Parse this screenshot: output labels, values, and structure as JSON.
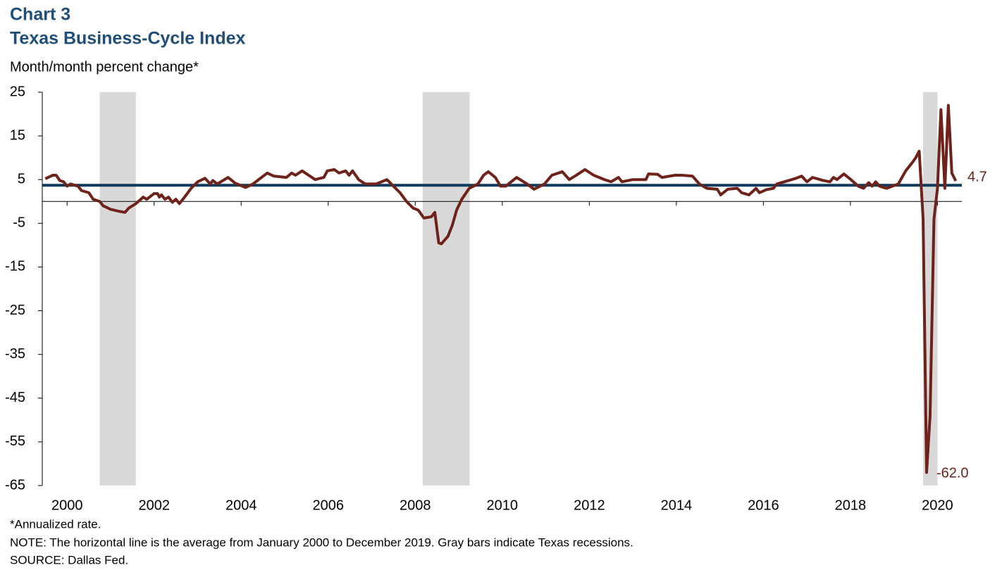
{
  "chart_data": {
    "type": "line",
    "title": "Chart 3",
    "subtitle": "Texas Business-Cycle Index",
    "y_label": "Month/month percent change*",
    "notes": [
      "*Annualized  rate.",
      "NOTE: The horizontal line is the average from January 2000 to December 2019. Gray bars indicate Texas recessions.",
      "SOURCE: Dallas Fed."
    ],
    "annotations": [
      "4.7",
      "-62.0"
    ],
    "average": 3.7,
    "average_color": "#0e3a5e",
    "recessions": [
      [
        2001.25,
        2002.08
      ],
      [
        2008.67,
        2009.75
      ],
      [
        2020.17,
        2020.5
      ]
    ],
    "recession_color": "#d9d9d9",
    "ylim": [
      -65,
      25
    ],
    "yticks": [
      25,
      15,
      5,
      -5,
      -15,
      -25,
      -35,
      -45,
      -55,
      -65
    ],
    "xlim": [
      1999.93,
      2021.06
    ],
    "xticks": [
      {
        "value": 2000.5,
        "label": "2000"
      },
      {
        "value": 2002.5,
        "label": "2002"
      },
      {
        "value": 2004.5,
        "label": "2004"
      },
      {
        "value": 2006.5,
        "label": "2006"
      },
      {
        "value": 2008.5,
        "label": "2008"
      },
      {
        "value": 2010.5,
        "label": "2010"
      },
      {
        "value": 2012.5,
        "label": "2012"
      },
      {
        "value": 2014.5,
        "label": "2014"
      },
      {
        "value": 2016.5,
        "label": "2016"
      },
      {
        "value": 2018.5,
        "label": "2018"
      },
      {
        "value": 2020.5,
        "label": "2020"
      }
    ],
    "x": [
      2000.0,
      2000.17,
      2000.25,
      2000.33,
      2000.42,
      2000.5,
      2000.58,
      2000.75,
      2000.83,
      2001.0,
      2001.1,
      2001.25,
      2001.33,
      2001.5,
      2001.67,
      2001.83,
      2001.92,
      2002.08,
      2002.25,
      2002.33,
      2002.5,
      2002.58,
      2002.62,
      2002.67,
      2002.75,
      2002.83,
      2002.92,
      2003.0,
      2003.08,
      2003.2,
      2003.35,
      2003.5,
      2003.67,
      2003.79,
      2003.85,
      2003.95,
      2004.2,
      2004.36,
      2004.6,
      2004.77,
      2005.1,
      2005.25,
      2005.54,
      2005.66,
      2005.75,
      2005.9,
      2006.05,
      2006.2,
      2006.4,
      2006.48,
      2006.64,
      2006.75,
      2006.9,
      2006.98,
      2007.06,
      2007.2,
      2007.35,
      2007.6,
      2007.85,
      2008.0,
      2008.15,
      2008.3,
      2008.45,
      2008.57,
      2008.7,
      2008.87,
      2008.95,
      2009.04,
      2009.1,
      2009.25,
      2009.35,
      2009.45,
      2009.57,
      2009.74,
      2009.94,
      2010.07,
      2010.18,
      2010.34,
      2010.46,
      2010.58,
      2010.83,
      2011.07,
      2011.23,
      2011.47,
      2011.64,
      2011.88,
      2012.04,
      2012.2,
      2012.4,
      2012.6,
      2012.85,
      2013.0,
      2013.17,
      2013.25,
      2013.5,
      2013.8,
      2013.86,
      2014.07,
      2014.17,
      2014.47,
      2014.63,
      2014.87,
      2015.03,
      2015.2,
      2015.44,
      2015.52,
      2015.68,
      2015.9,
      2016.0,
      2016.17,
      2016.33,
      2016.41,
      2016.57,
      2016.73,
      2016.81,
      2016.98,
      2017.22,
      2017.38,
      2017.5,
      2017.63,
      2017.87,
      2018.03,
      2018.11,
      2018.19,
      2018.35,
      2018.51,
      2018.68,
      2018.8,
      2018.92,
      2019.0,
      2019.08,
      2019.17,
      2019.33,
      2019.6,
      2019.77,
      2019.93,
      2020.0,
      2020.08,
      2020.17,
      2020.25,
      2020.33,
      2020.42,
      2020.5,
      2020.58,
      2020.67,
      2020.75,
      2020.83,
      2020.92
    ],
    "series": [
      {
        "name": "Texas Business-Cycle Index",
        "color": "#6e2219",
        "values": [
          5.2,
          6,
          6,
          4.8,
          4.5,
          3.5,
          4,
          3.5,
          2.5,
          2,
          0.5,
          0,
          -1,
          -1.8,
          -2.2,
          -2.5,
          -1.5,
          -0.5,
          1,
          0.5,
          1.8,
          1.8,
          1,
          1.5,
          0.5,
          1,
          -0.2,
          0.5,
          -0.5,
          1,
          3,
          4.5,
          5.3,
          4,
          4.8,
          4,
          5.5,
          4.2,
          3.2,
          4,
          6.5,
          5.8,
          5.5,
          6.5,
          6,
          7,
          6,
          5,
          5.5,
          7,
          7.3,
          6.5,
          7,
          6,
          7,
          5,
          4,
          4,
          5,
          3.5,
          2,
          0,
          -1.5,
          -2,
          -3.8,
          -3.5,
          -2.5,
          -9.5,
          -9.7,
          -8,
          -5.5,
          -2,
          0.5,
          3,
          4,
          6,
          6.8,
          5.5,
          3.5,
          3.5,
          5.5,
          4,
          2.8,
          4,
          6,
          6.8,
          5,
          6,
          7.3,
          6,
          5,
          4.5,
          5.5,
          4.5,
          5,
          5,
          6.3,
          6.2,
          5.5,
          6,
          6,
          5.8,
          4,
          3,
          2.8,
          1.5,
          2.8,
          3,
          2,
          1.5,
          3,
          2,
          2.7,
          3,
          4,
          4.5,
          5.2,
          5.8,
          4.5,
          5.5,
          4.8,
          4.5,
          5.5,
          5,
          6.3,
          5,
          3.5,
          3,
          4.3,
          3.5,
          4.5,
          3.5,
          3,
          4,
          7,
          9,
          10,
          11.5,
          -4,
          -62,
          -49,
          -4,
          3,
          21,
          3,
          22,
          6.5,
          4.7
        ]
      }
    ]
  }
}
